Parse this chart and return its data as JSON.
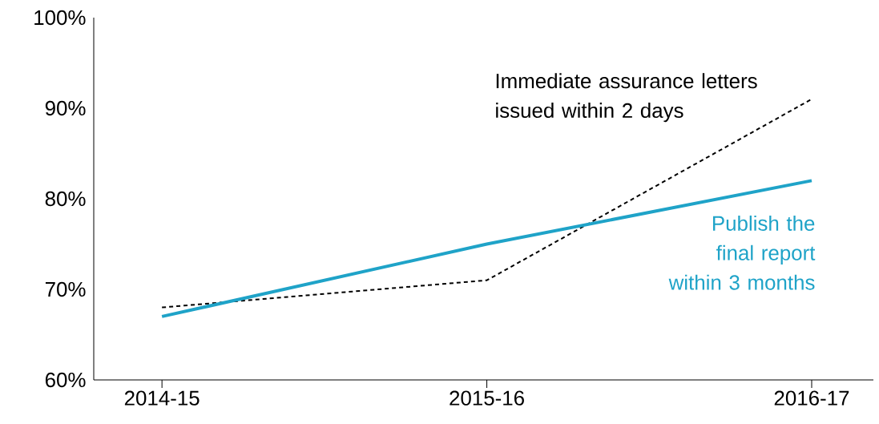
{
  "chart_data": {
    "type": "line",
    "categories": [
      "2014-15",
      "2015-16",
      "2016-17"
    ],
    "series": [
      {
        "name": "Immediate assurance letters issued within 2 days",
        "color": "#000000",
        "line_style": "dashed",
        "values": [
          68,
          71,
          91
        ]
      },
      {
        "name": "Publish the final report within 3 months",
        "color": "#1fa3c8",
        "line_style": "solid",
        "values": [
          67,
          75,
          82
        ]
      }
    ],
    "ylim": [
      60,
      100
    ],
    "yticks": [
      {
        "value": 60,
        "label": "60%"
      },
      {
        "value": 70,
        "label": "70%"
      },
      {
        "value": 80,
        "label": "80%"
      },
      {
        "value": 90,
        "label": "90%"
      },
      {
        "value": 100,
        "label": "100%"
      }
    ],
    "grid": false,
    "marker": "none"
  }
}
